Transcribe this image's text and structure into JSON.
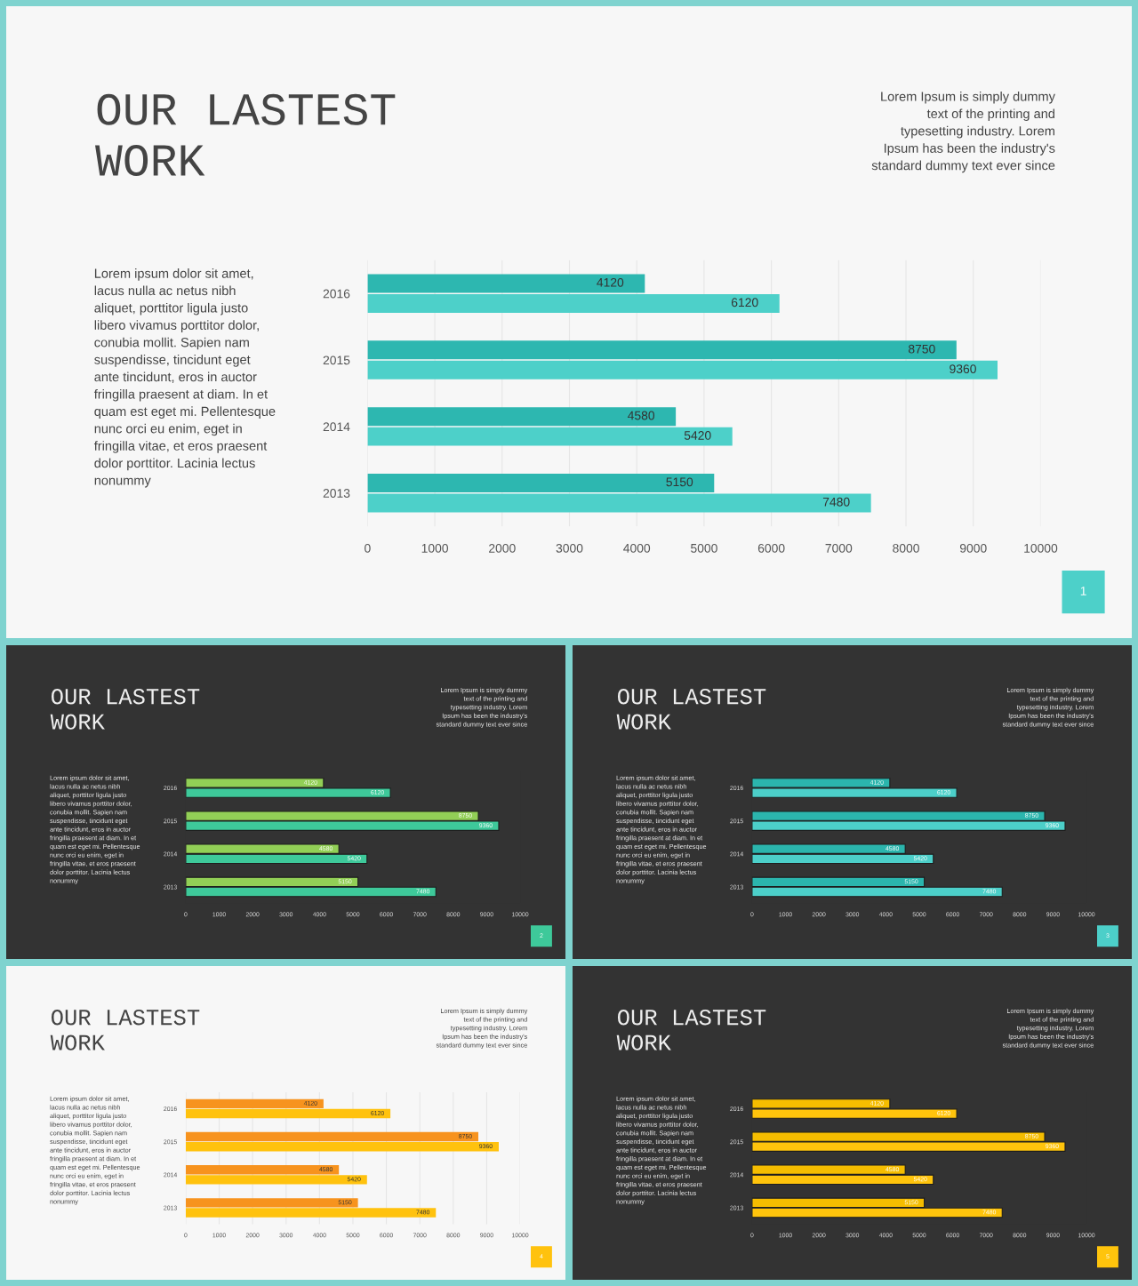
{
  "chart_data": [
    {
      "type": "bar",
      "orientation": "horizontal",
      "title": "OUR LASTEST\nWORK",
      "subtitle": "Lorem Ipsum is simply dummy\ntext of the printing and\ntypesetting industry. Lorem\nIpsum has been the industry's\nstandard dummy text ever since",
      "annotations": [
        "Lorem ipsum dolor sit amet,\nlacus nulla ac netus nibh\naliquet, porttitor ligula justo\nlibero vivamus porttitor dolor,\nconubia mollit. Sapien nam\nsuspendisse, tincidunt eget\nante tincidunt, eros in auctor\nfringilla praesent at diam. In et\nquam est eget mi. Pellentesque\nnunc orci eu enim, eget in\nfringilla vitae, et eros praesent\ndolor porttitor. Lacinia lectus\nnonummy",
        "1"
      ],
      "categories": [
        "2016",
        "2015",
        "2014",
        "2013"
      ],
      "series": [
        {
          "color": "#2db7b0",
          "values": [
            4120,
            8750,
            4580,
            5150
          ]
        },
        {
          "color": "#4dd0c9",
          "values": [
            6120,
            9360,
            5420,
            7480
          ]
        }
      ],
      "xlim": [
        0,
        10000
      ],
      "xticks": [
        0,
        1000,
        2000,
        3000,
        4000,
        5000,
        6000,
        7000,
        8000,
        9000,
        10000
      ],
      "grid": "x",
      "data_labels": true
    },
    {
      "type": "bar",
      "orientation": "horizontal",
      "title": "OUR LASTEST\nWORK",
      "subtitle": "Lorem Ipsum is simply dummy\ntext of the printing and\ntypesetting industry. Lorem\nIpsum has been the industry's\nstandard dummy text ever since",
      "annotations": [
        "Lorem ipsum dolor sit amet,\nlacus nulla ac netus nibh\naliquet, porttitor ligula justo\nlibero vivamus porttitor dolor,\nconubia mollit. Sapien nam\nsuspendisse, tincidunt eget\nante tincidunt, eros in auctor\nfringilla praesent at diam. In et\nquam est eget mi. Pellentesque\nnunc orci eu enim, eget in\nfringilla vitae, et eros praesent\ndolor porttitor. Lacinia lectus\nnonummy",
        "2"
      ],
      "categories": [
        "2016",
        "2015",
        "2014",
        "2013"
      ],
      "series": [
        {
          "color": "#92cf56",
          "values": [
            4120,
            8750,
            4580,
            5150
          ]
        },
        {
          "color": "#3ec99a",
          "values": [
            6120,
            9360,
            5420,
            7480
          ]
        }
      ],
      "xlim": [
        0,
        10000
      ],
      "xticks": [
        0,
        1000,
        2000,
        3000,
        4000,
        5000,
        6000,
        7000,
        8000,
        9000,
        10000
      ],
      "data_labels": true
    },
    {
      "type": "bar",
      "orientation": "horizontal",
      "title": "OUR LASTEST\nWORK",
      "subtitle": "Lorem Ipsum is simply dummy\ntext of the printing and\ntypesetting industry. Lorem\nIpsum has been the industry's\nstandard dummy text ever since",
      "annotations": [
        "Lorem ipsum dolor sit amet,\nlacus nulla ac netus nibh\naliquet, porttitor ligula justo\nlibero vivamus porttitor dolor,\nconubia mollit. Sapien nam\nsuspendisse, tincidunt eget\nante tincidunt, eros in auctor\nfringilla praesent at diam. In et\nquam est eget mi. Pellentesque\nnunc orci eu enim, eget in\nfringilla vitae, et eros praesent\ndolor porttitor. Lacinia lectus\nnonummy",
        "3"
      ],
      "categories": [
        "2016",
        "2015",
        "2014",
        "2013"
      ],
      "series": [
        {
          "color": "#2bb5ad",
          "values": [
            4120,
            8750,
            4580,
            5150
          ]
        },
        {
          "color": "#4ccfc9",
          "values": [
            6120,
            9360,
            5420,
            7480
          ]
        }
      ],
      "xlim": [
        0,
        10000
      ],
      "xticks": [
        0,
        1000,
        2000,
        3000,
        4000,
        5000,
        6000,
        7000,
        8000,
        9000,
        10000
      ],
      "data_labels": true
    },
    {
      "type": "bar",
      "orientation": "horizontal",
      "title": "OUR LASTEST\nWORK",
      "subtitle": "Lorem Ipsum is simply dummy\ntext of the printing and\ntypesetting industry. Lorem\nIpsum has been the industry's\nstandard dummy text ever since",
      "annotations": [
        "Lorem ipsum dolor sit amet,\nlacus nulla ac netus nibh\naliquet, porttitor ligula justo\nlibero vivamus porttitor dolor,\nconubia mollit. Sapien nam\nsuspendisse, tincidunt eget\nante tincidunt, eros in auctor\nfringilla praesent at diam. In et\nquam est eget mi. Pellentesque\nnunc orci eu enim, eget in\nfringilla vitae, et eros praesent\ndolor porttitor. Lacinia lectus\nnonummy",
        "4"
      ],
      "categories": [
        "2016",
        "2015",
        "2014",
        "2013"
      ],
      "series": [
        {
          "color": "#f7931e",
          "values": [
            4120,
            8750,
            4580,
            5150
          ]
        },
        {
          "color": "#ffc20e",
          "values": [
            6120,
            9360,
            5420,
            7480
          ]
        }
      ],
      "xlim": [
        0,
        10000
      ],
      "xticks": [
        0,
        1000,
        2000,
        3000,
        4000,
        5000,
        6000,
        7000,
        8000,
        9000,
        10000
      ],
      "grid": "x",
      "data_labels": true
    },
    {
      "type": "bar",
      "orientation": "horizontal",
      "title": "OUR LASTEST\nWORK",
      "subtitle": "Lorem Ipsum is simply dummy\ntext of the printing and\ntypesetting industry. Lorem\nIpsum has been the industry's\nstandard dummy text ever since",
      "annotations": [
        "Lorem ipsum dolor sit amet,\nlacus nulla ac netus nibh\naliquet, porttitor ligula justo\nlibero vivamus porttitor dolor,\nconubia mollit. Sapien nam\nsuspendisse, tincidunt eget\nante tincidunt, eros in auctor\nfringilla praesent at diam. In et\nquam est eget mi. Pellentesque\nnunc orci eu enim, eget in\nfringilla vitae, et eros praesent\ndolor porttitor. Lacinia lectus\nnonummy",
        "5"
      ],
      "categories": [
        "2016",
        "2015",
        "2014",
        "2013"
      ],
      "series": [
        {
          "color": "#f5bd00",
          "values": [
            4120,
            8750,
            4580,
            5150
          ]
        },
        {
          "color": "#ffc40c",
          "values": [
            6120,
            9360,
            5420,
            7480
          ]
        }
      ],
      "xlim": [
        0,
        10000
      ],
      "xticks": [
        0,
        1000,
        2000,
        3000,
        4000,
        5000,
        6000,
        7000,
        8000,
        9000,
        10000
      ],
      "data_labels": true
    }
  ]
}
